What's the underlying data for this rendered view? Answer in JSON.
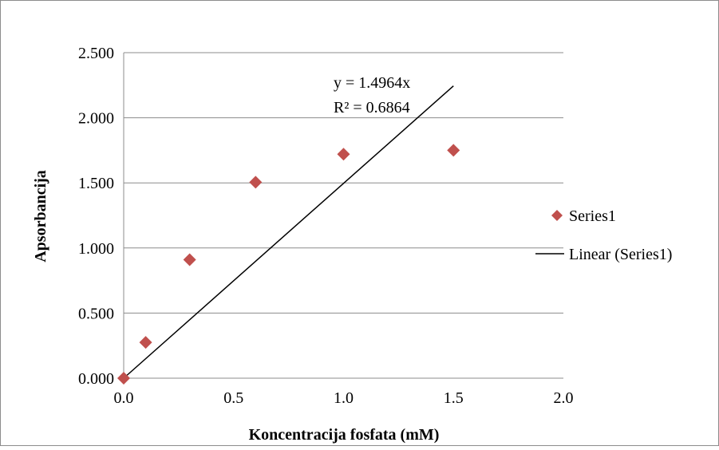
{
  "chart_data": {
    "type": "scatter",
    "title": "",
    "xlabel": "Koncentracija  fosfata (mM)",
    "ylabel": "Apsorbancija",
    "xlim": [
      0,
      2.0
    ],
    "ylim": [
      0,
      2.5
    ],
    "x_ticks": [
      "0.0",
      "0.5",
      "1.0",
      "1.5",
      "2.0"
    ],
    "y_ticks": [
      "0.000",
      "0.500",
      "1.000",
      "1.500",
      "2.000",
      "2.500"
    ],
    "grid": "horizontal",
    "legend_position": "right",
    "series": [
      {
        "name": "Series1",
        "marker": "diamond",
        "color": "#C0504D",
        "points": [
          {
            "x": 0.0,
            "y": 0.0
          },
          {
            "x": 0.1,
            "y": 0.275
          },
          {
            "x": 0.3,
            "y": 0.91
          },
          {
            "x": 0.6,
            "y": 1.505
          },
          {
            "x": 1.0,
            "y": 1.72
          },
          {
            "x": 1.5,
            "y": 1.75
          }
        ]
      }
    ],
    "trendline": {
      "name": "Linear (Series1)",
      "type": "linear",
      "slope": 1.4964,
      "intercept": 0,
      "x_range": [
        0,
        1.5
      ],
      "color": "#000000",
      "equation": "y = 1.4964x",
      "r_squared": "R² = 0.6864"
    }
  }
}
